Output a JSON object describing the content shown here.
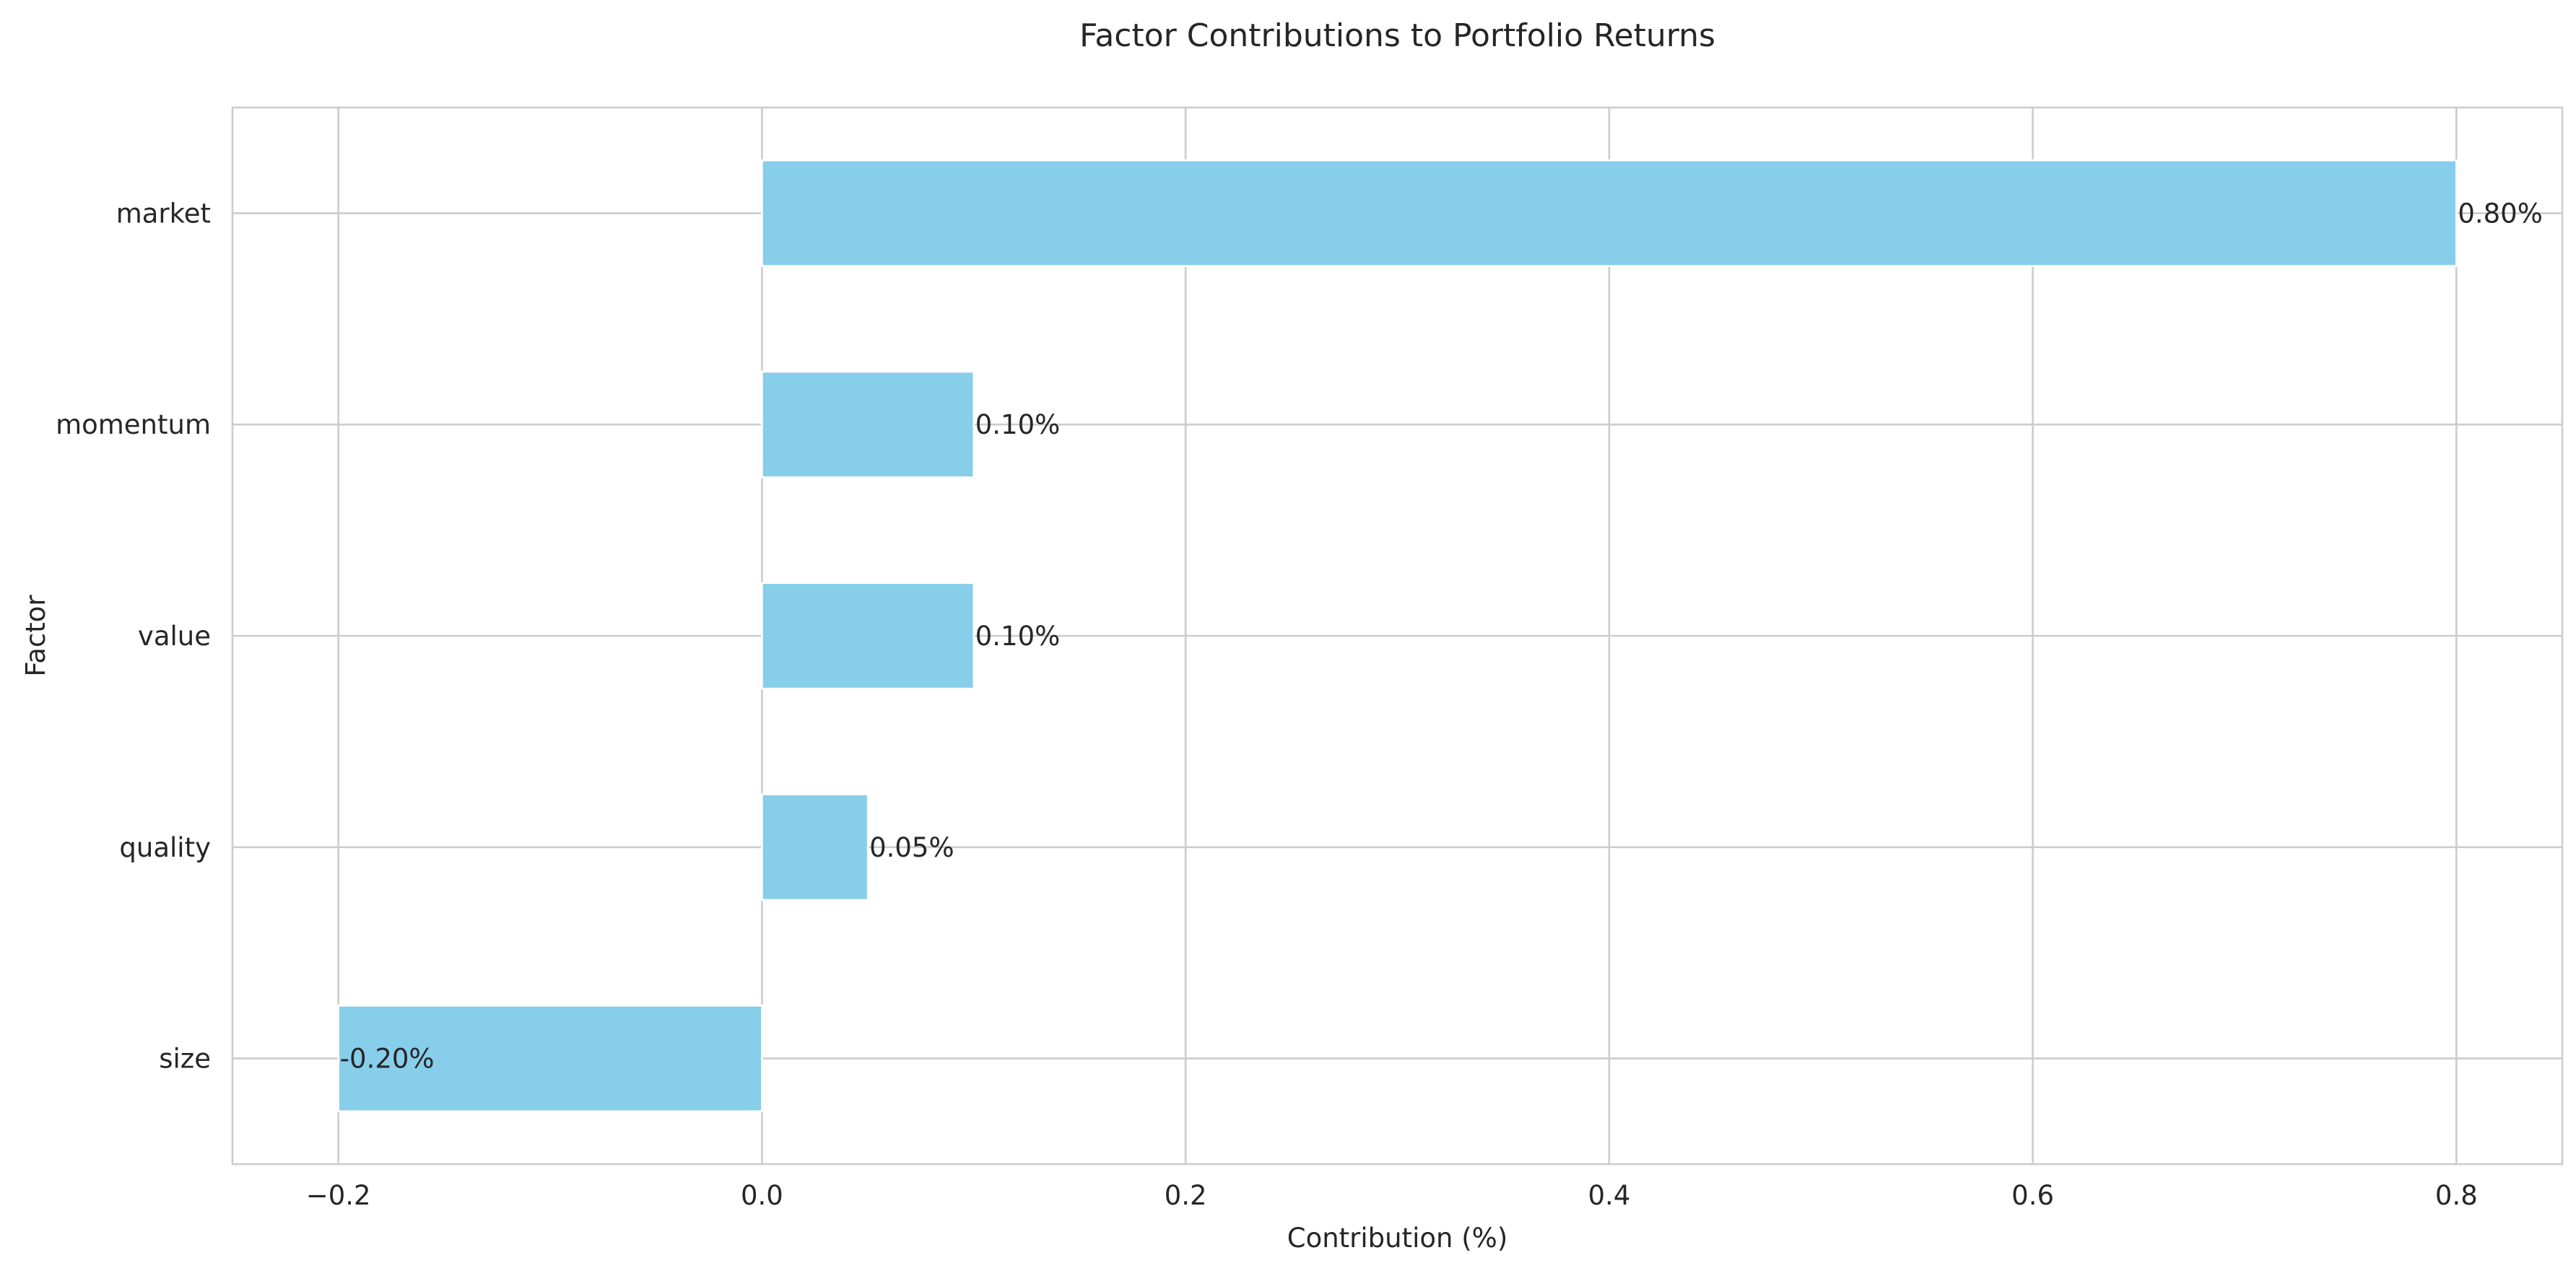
{
  "chart_data": {
    "type": "bar",
    "orientation": "horizontal",
    "title": "Factor Contributions to Portfolio Returns",
    "xlabel": "Contribution (%)",
    "ylabel": "Factor",
    "categories": [
      "market",
      "momentum",
      "value",
      "quality",
      "size"
    ],
    "values": [
      0.8,
      0.1,
      0.1,
      0.05,
      -0.2
    ],
    "data_labels": [
      "0.80%",
      "0.10%",
      "0.10%",
      "0.05%",
      "-0.20%"
    ],
    "xlim": [
      -0.25,
      0.85
    ],
    "xticks": [
      -0.2,
      0.0,
      0.2,
      0.4,
      0.6,
      0.8
    ],
    "xtick_labels": [
      "−0.2",
      "0.0",
      "0.2",
      "0.4",
      "0.6",
      "0.8"
    ],
    "grid": true,
    "bar_color": "#87CEEB"
  }
}
